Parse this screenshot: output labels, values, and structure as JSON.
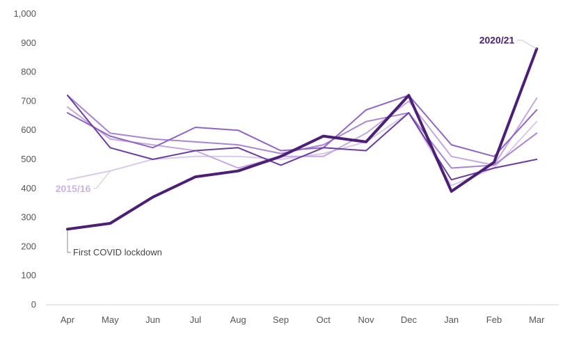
{
  "chart_data": {
    "type": "line",
    "categories": [
      "Apr",
      "May",
      "Jun",
      "Jul",
      "Aug",
      "Sep",
      "Oct",
      "Nov",
      "Dec",
      "Jan",
      "Feb",
      "Mar"
    ],
    "ylim": [
      0,
      1000
    ],
    "yticks": [
      0,
      100,
      200,
      300,
      400,
      500,
      600,
      700,
      800,
      900,
      "1,000"
    ],
    "grid": false,
    "series": [
      {
        "name": "2015/16",
        "labeled": true,
        "color": "#d9c9ea",
        "width": 2,
        "values": [
          430,
          460,
          500,
          510,
          510,
          500,
          520,
          560,
          660,
          410,
          470,
          630
        ]
      },
      {
        "name": "",
        "color": "#c3a8df",
        "width": 2,
        "values": [
          680,
          570,
          550,
          530,
          470,
          510,
          510,
          590,
          700,
          510,
          480,
          710
        ]
      },
      {
        "name": "",
        "color": "#a985d1",
        "width": 2,
        "values": [
          720,
          590,
          570,
          560,
          550,
          520,
          550,
          630,
          660,
          470,
          480,
          590
        ]
      },
      {
        "name": "",
        "color": "#9065c2",
        "width": 2,
        "values": [
          660,
          580,
          540,
          610,
          600,
          530,
          540,
          670,
          720,
          550,
          510,
          670
        ]
      },
      {
        "name": "",
        "color": "#6b3d9e",
        "width": 2,
        "values": [
          720,
          540,
          500,
          530,
          540,
          480,
          540,
          530,
          660,
          430,
          470,
          500
        ]
      },
      {
        "name": "2020/21",
        "labeled": true,
        "color": "#4b1f73",
        "width": 4,
        "values": [
          260,
          280,
          370,
          440,
          460,
          510,
          580,
          560,
          720,
          390,
          490,
          880
        ]
      }
    ],
    "annotations": [
      {
        "text": "2020/21",
        "series": "2020/21"
      },
      {
        "text": "2015/16",
        "series": "2015/16"
      },
      {
        "text": "First COVID lockdown",
        "series": "2020/21",
        "category": "Apr"
      }
    ]
  }
}
